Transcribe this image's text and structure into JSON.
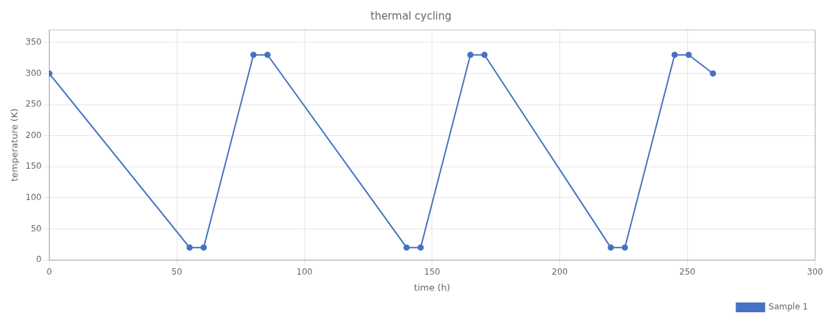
{
  "chart_data": {
    "type": "line",
    "title": "thermal cycling",
    "xlabel": "time (h)",
    "ylabel": "temperature (K)",
    "x": [
      0,
      55,
      60.5,
      80,
      85.5,
      140,
      145.5,
      165,
      170.5,
      220,
      225.5,
      245,
      250.5,
      260
    ],
    "series": [
      {
        "name": "Sample 1",
        "color": "#4472C4",
        "marker": "circle",
        "values": [
          300,
          20,
          20,
          330,
          330,
          20,
          20,
          330,
          330,
          20,
          20,
          330,
          330,
          300
        ]
      }
    ],
    "xlim": [
      0,
      300
    ],
    "ylim": [
      0,
      370
    ],
    "xticks": [
      0,
      50,
      100,
      150,
      200,
      250,
      300
    ],
    "yticks": [
      0,
      50,
      100,
      150,
      200,
      250,
      300,
      350
    ],
    "grid": true,
    "legend": "lower right"
  }
}
